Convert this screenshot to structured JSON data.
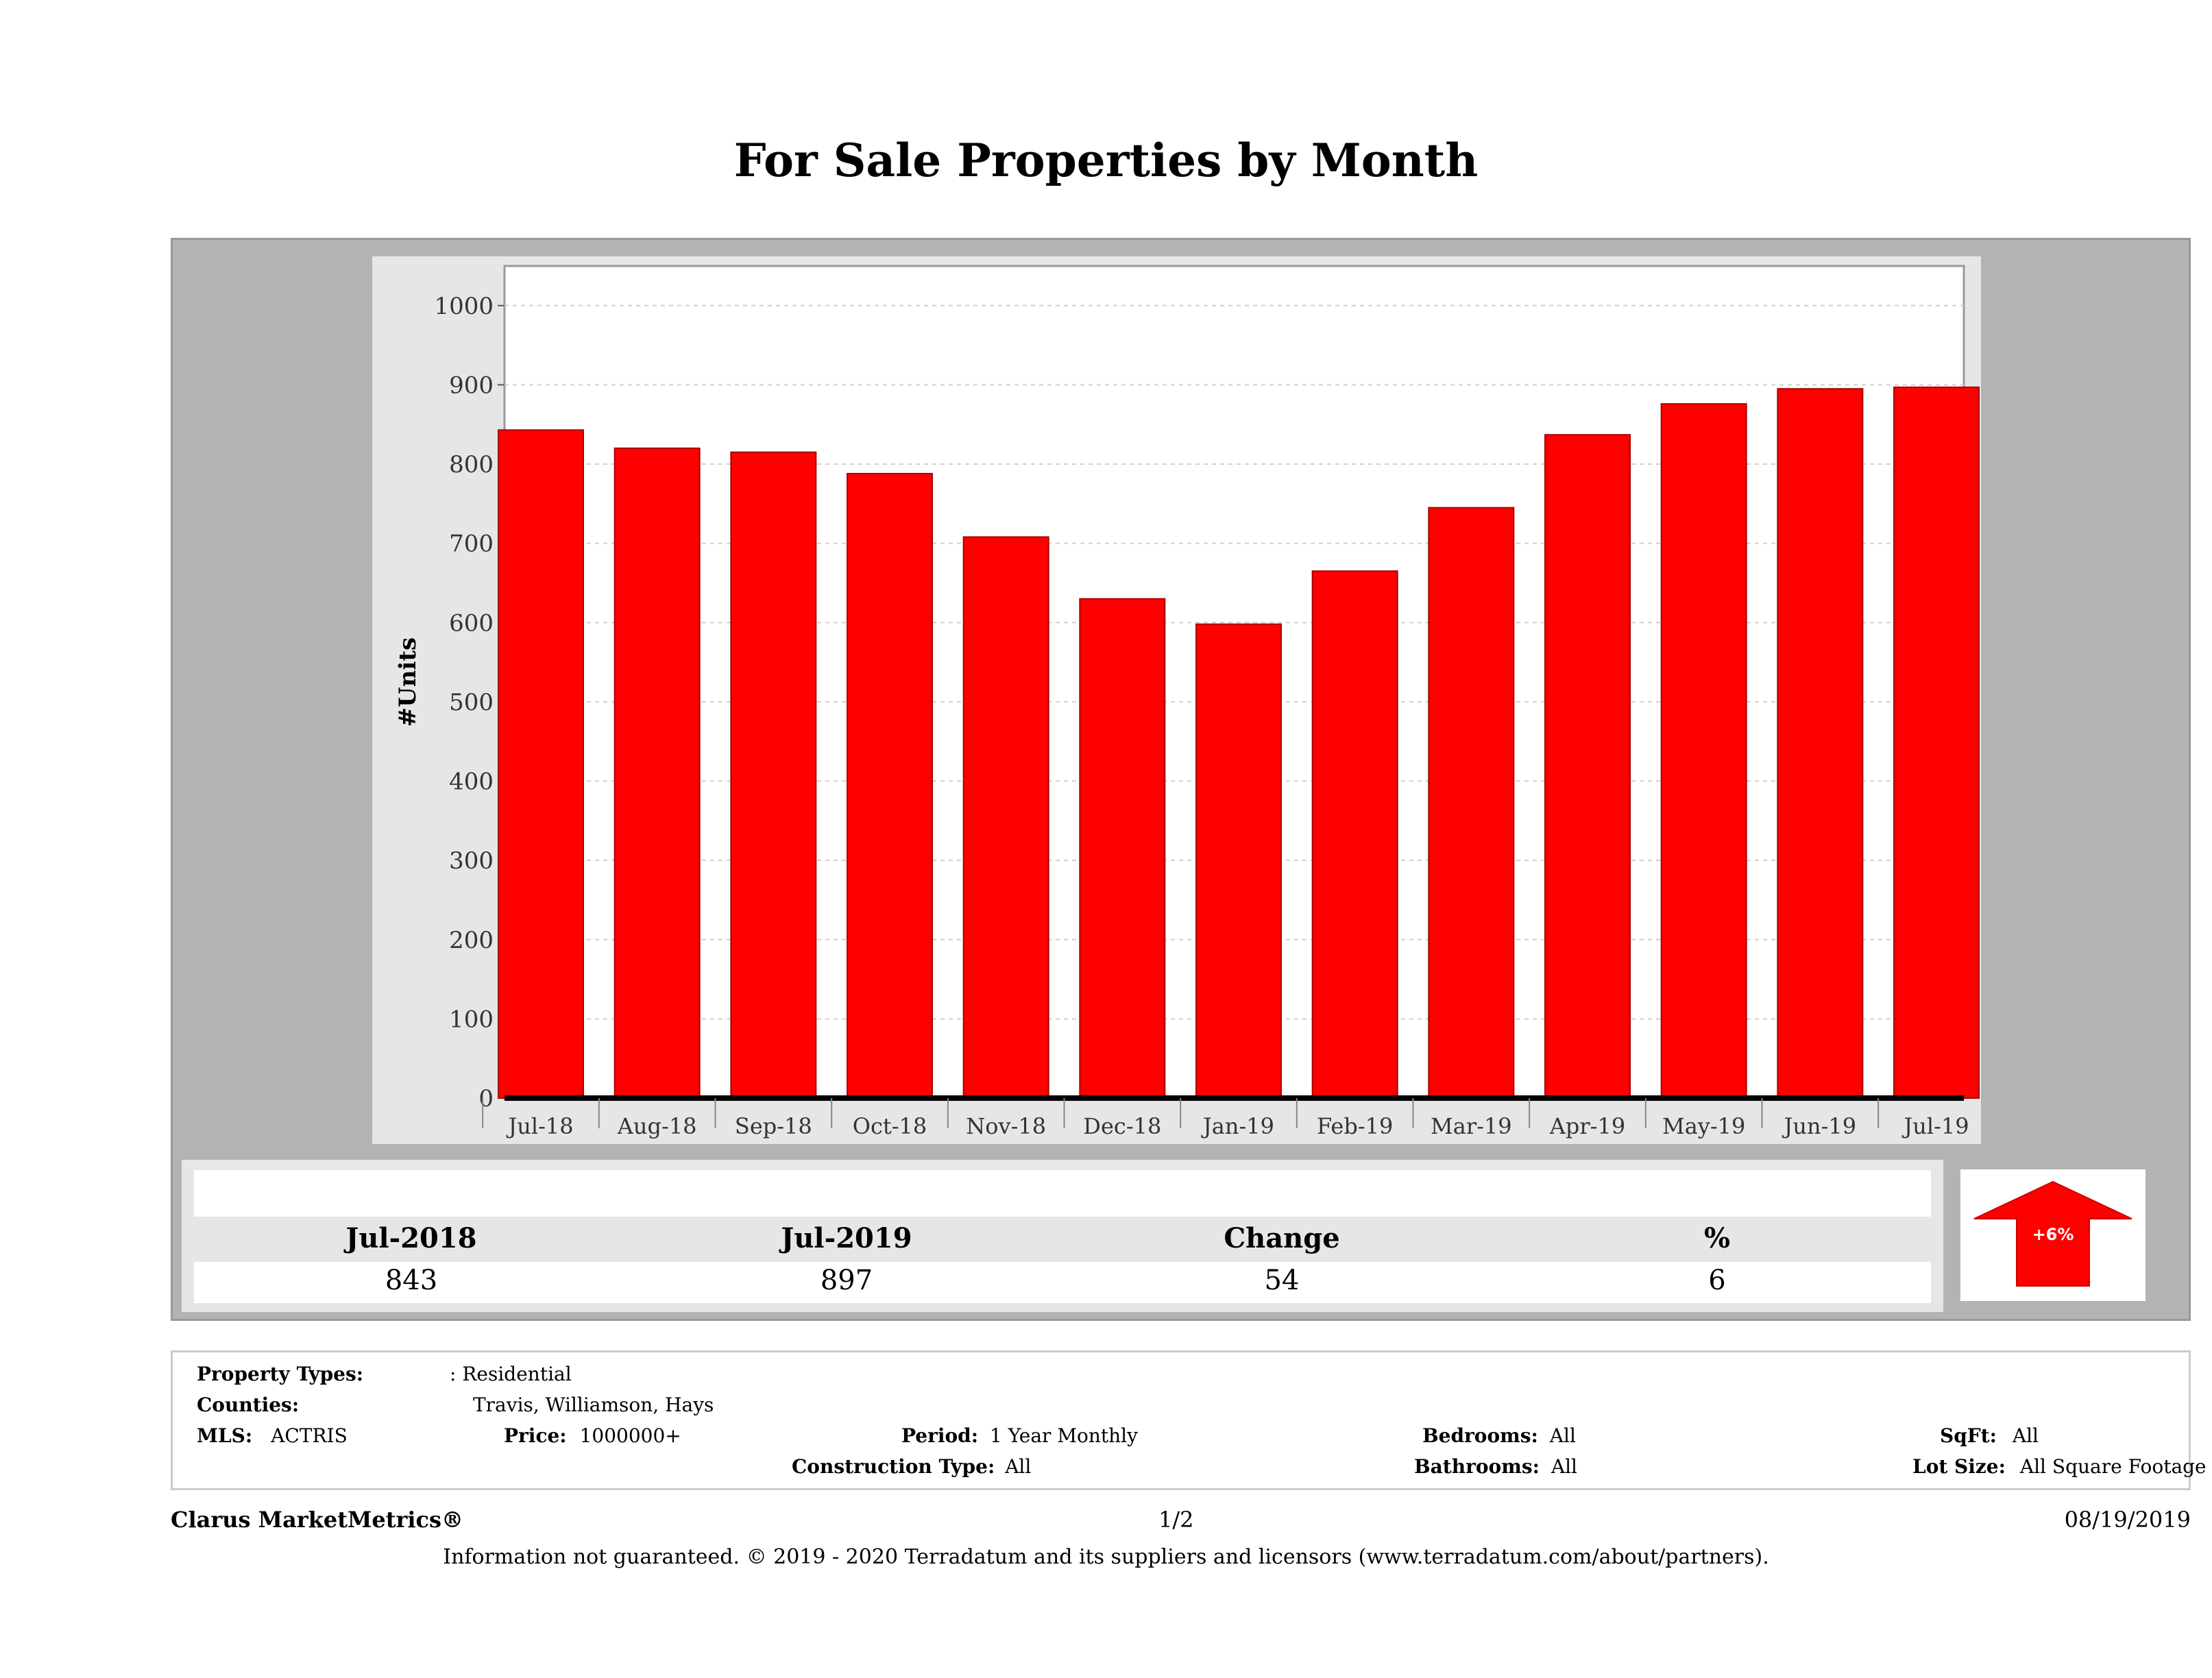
{
  "title": "For Sale Properties by Month",
  "chart_data": {
    "type": "bar",
    "categories": [
      "Jul-18",
      "Aug-18",
      "Sep-18",
      "Oct-18",
      "Nov-18",
      "Dec-18",
      "Jan-19",
      "Feb-19",
      "Mar-19",
      "Apr-19",
      "May-19",
      "Jun-19",
      "Jul-19"
    ],
    "values": [
      843,
      820,
      815,
      788,
      708,
      630,
      598,
      665,
      745,
      837,
      876,
      895,
      897
    ],
    "ylabel": "#Units",
    "xlabel": "",
    "ylim": [
      0,
      1050
    ],
    "yticks": [
      0,
      100,
      200,
      300,
      400,
      500,
      600,
      700,
      800,
      900,
      1000
    ],
    "bar_color": "#ff0000",
    "grid": true
  },
  "summary": {
    "headers": [
      "Jul-2018",
      "Jul-2019",
      "Change",
      "%"
    ],
    "values": [
      "843",
      "897",
      "54",
      "6"
    ],
    "arrow_label": "+6%",
    "arrow_color": "#ff0000"
  },
  "criteria": {
    "property_types_label": "Property Types:",
    "property_types_value": ": Residential",
    "counties_label": "Counties:",
    "counties_value": "Travis, Williamson, Hays",
    "mls_label": "MLS:",
    "mls_value": "ACTRIS",
    "price_label": "Price:",
    "price_value": "1000000+",
    "period_label": "Period:",
    "period_value": "1 Year Monthly",
    "construction_label": "Construction Type:",
    "construction_value": "All",
    "bedrooms_label": "Bedrooms:",
    "bedrooms_value": "All",
    "bathrooms_label": "Bathrooms:",
    "bathrooms_value": "All",
    "sqft_label": "SqFt:",
    "sqft_value": "All",
    "lotsize_label": "Lot Size:",
    "lotsize_value": "All Square Footage"
  },
  "footer": {
    "brand": "Clarus MarketMetrics®",
    "page": "1/2",
    "date": "08/19/2019",
    "disclaimer": "Information not guaranteed. © 2019 - 2020 Terradatum and its suppliers and licensors (www.terradatum.com/about/partners)."
  }
}
